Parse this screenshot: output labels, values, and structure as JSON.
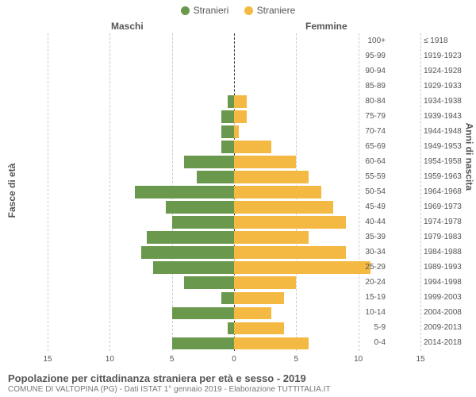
{
  "chart": {
    "type": "population-pyramid",
    "legend": [
      {
        "label": "Stranieri",
        "color": "#6a994e"
      },
      {
        "label": "Straniere",
        "color": "#f4b942"
      }
    ],
    "column_titles": {
      "left": "Maschi",
      "right": "Femmine"
    },
    "y_axis_left_label": "Fasce di età",
    "y_axis_right_label": "Anni di nascita",
    "x_ticks": [
      15,
      10,
      5,
      0,
      5,
      10,
      15
    ],
    "x_max": 15,
    "grid_color": "#cccccc",
    "center_color": "#333333",
    "background_color": "#ffffff",
    "text_color": "#555555",
    "bar_gap_ratio": 0.18,
    "rows": [
      {
        "age": "100+",
        "birth": "≤ 1918",
        "m": 0,
        "f": 0
      },
      {
        "age": "95-99",
        "birth": "1919-1923",
        "m": 0,
        "f": 0
      },
      {
        "age": "90-94",
        "birth": "1924-1928",
        "m": 0,
        "f": 0
      },
      {
        "age": "85-89",
        "birth": "1929-1933",
        "m": 0,
        "f": 0
      },
      {
        "age": "80-84",
        "birth": "1934-1938",
        "m": 0.5,
        "f": 1
      },
      {
        "age": "75-79",
        "birth": "1939-1943",
        "m": 1,
        "f": 1
      },
      {
        "age": "70-74",
        "birth": "1944-1948",
        "m": 1,
        "f": 0.4
      },
      {
        "age": "65-69",
        "birth": "1949-1953",
        "m": 1,
        "f": 3
      },
      {
        "age": "60-64",
        "birth": "1954-1958",
        "m": 4,
        "f": 5
      },
      {
        "age": "55-59",
        "birth": "1959-1963",
        "m": 3,
        "f": 6
      },
      {
        "age": "50-54",
        "birth": "1964-1968",
        "m": 8,
        "f": 7
      },
      {
        "age": "45-49",
        "birth": "1969-1973",
        "m": 5.5,
        "f": 8
      },
      {
        "age": "40-44",
        "birth": "1974-1978",
        "m": 5,
        "f": 9
      },
      {
        "age": "35-39",
        "birth": "1979-1983",
        "m": 7,
        "f": 6
      },
      {
        "age": "30-34",
        "birth": "1984-1988",
        "m": 7.5,
        "f": 9
      },
      {
        "age": "25-29",
        "birth": "1989-1993",
        "m": 6.5,
        "f": 11
      },
      {
        "age": "20-24",
        "birth": "1994-1998",
        "m": 4,
        "f": 5
      },
      {
        "age": "15-19",
        "birth": "1999-2003",
        "m": 1,
        "f": 4
      },
      {
        "age": "10-14",
        "birth": "2004-2008",
        "m": 5,
        "f": 3
      },
      {
        "age": "5-9",
        "birth": "2009-2013",
        "m": 0.5,
        "f": 4
      },
      {
        "age": "0-4",
        "birth": "2014-2018",
        "m": 5,
        "f": 6
      }
    ]
  },
  "footer": {
    "title": "Popolazione per cittadinanza straniera per età e sesso - 2019",
    "subtitle": "COMUNE DI VALTOPINA (PG) - Dati ISTAT 1° gennaio 2019 - Elaborazione TUTTITALIA.IT"
  }
}
